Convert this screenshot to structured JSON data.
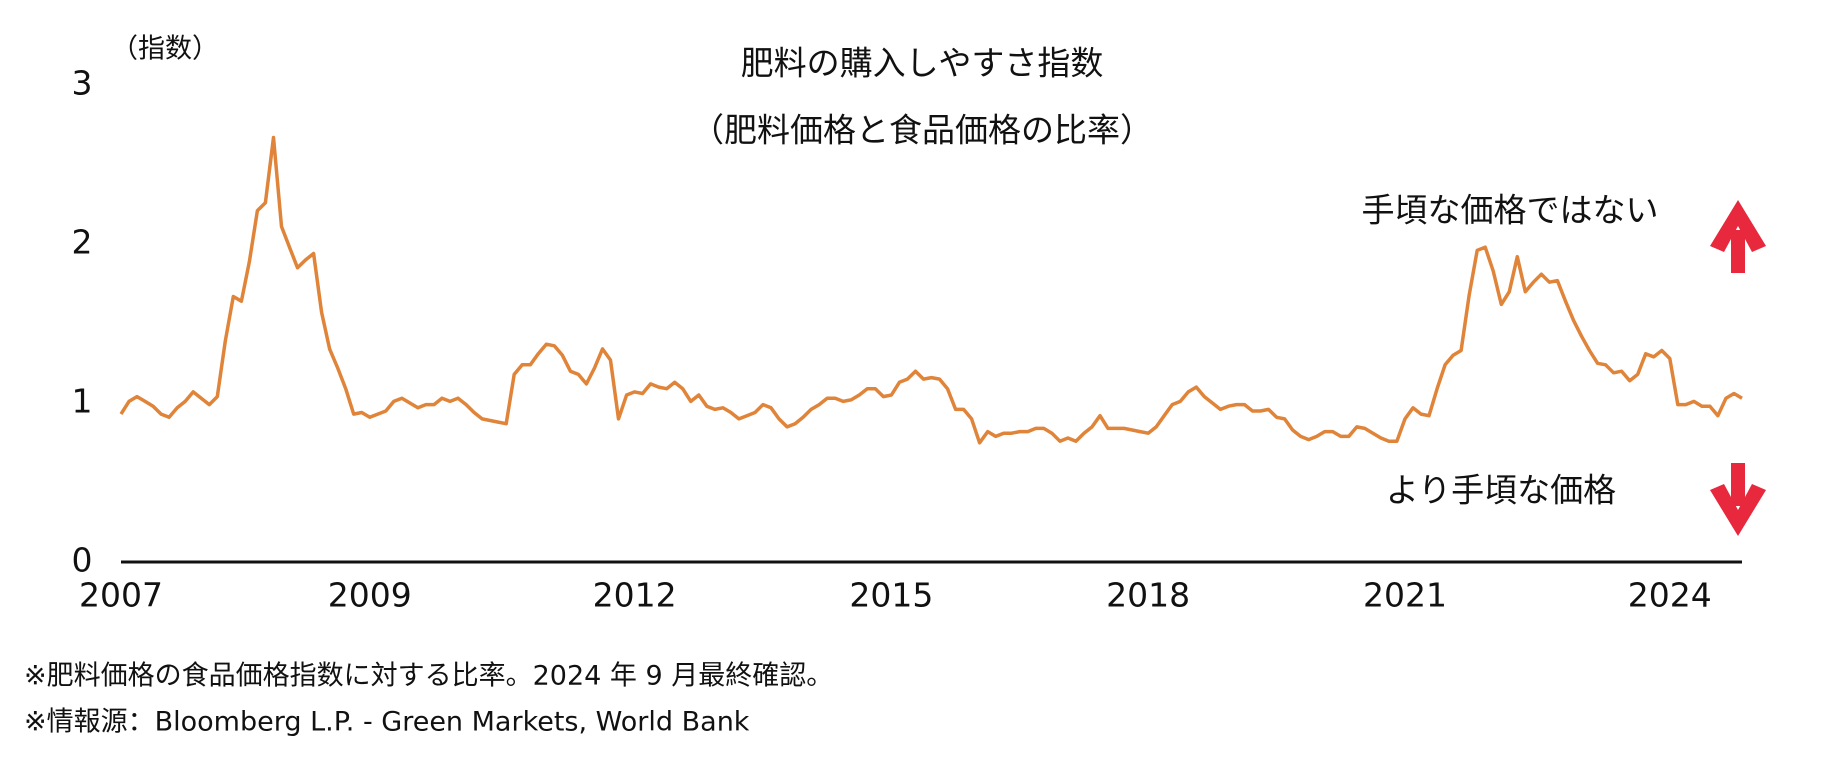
{
  "chart_data": {
    "type": "line",
    "title": "肥料の購入しやすさ指数",
    "subtitle": "（肥料価格と食品価格の比率）",
    "y_label": "（指数）",
    "annotations": [
      "手頃な価格ではない",
      "より手頃な価格"
    ],
    "categories": [
      "2007",
      null,
      null,
      null,
      null,
      null,
      null,
      null,
      null,
      null,
      null,
      null,
      null,
      null,
      null,
      null,
      null,
      null,
      null,
      null,
      null,
      null,
      null,
      null,
      null,
      null,
      null,
      null,
      null,
      null,
      null,
      "2009",
      null,
      null,
      null,
      null,
      null,
      null,
      null,
      null,
      null,
      null,
      null,
      null,
      null,
      null,
      null,
      null,
      null,
      null,
      null,
      null,
      null,
      null,
      null,
      null,
      null,
      null,
      null,
      null,
      null,
      null,
      null,
      null,
      "2012",
      null,
      null,
      null,
      null,
      null,
      null,
      null,
      null,
      null,
      null,
      null,
      null,
      null,
      null,
      null,
      null,
      null,
      null,
      null,
      null,
      null,
      null,
      null,
      null,
      null,
      null,
      null,
      null,
      null,
      null,
      null,
      "2015",
      null,
      null,
      null,
      null,
      null,
      null,
      null,
      null,
      null,
      null,
      null,
      null,
      null,
      null,
      null,
      null,
      null,
      null,
      null,
      null,
      null,
      null,
      null,
      null,
      null,
      null,
      null,
      null,
      null,
      null,
      null,
      "2018",
      null,
      null,
      null,
      null,
      null,
      null,
      null,
      null,
      null,
      null,
      null,
      null,
      null,
      null,
      null,
      null,
      null,
      null,
      null,
      null,
      null,
      null,
      null,
      null,
      null,
      null,
      null,
      null,
      null,
      null,
      null,
      "2021",
      null,
      null,
      null,
      null,
      null,
      null,
      null,
      null,
      null,
      null,
      null,
      null,
      null,
      null,
      null,
      null,
      null,
      null,
      null,
      null,
      null,
      null,
      null,
      null,
      null,
      null,
      null,
      null,
      null,
      null,
      null,
      null,
      "2024",
      null,
      null,
      null,
      null,
      null,
      null,
      null,
      null,
      null
    ],
    "series": [
      {
        "color": "#e0843a",
        "values": [
          0.93,
          1.01,
          1.04,
          1.01,
          0.98,
          0.93,
          0.91,
          0.97,
          1.01,
          1.07,
          1.03,
          0.99,
          1.04,
          1.39,
          1.67,
          1.64,
          1.89,
          2.21,
          2.26,
          2.67,
          2.11,
          1.98,
          1.85,
          1.9,
          1.94,
          1.57,
          1.34,
          1.22,
          1.09,
          0.93,
          0.94,
          0.91,
          0.93,
          0.95,
          1.01,
          1.03,
          1.0,
          0.97,
          0.99,
          0.99,
          1.03,
          1.01,
          1.03,
          0.99,
          0.94,
          0.9,
          0.89,
          0.88,
          0.87,
          1.18,
          1.24,
          1.24,
          1.31,
          1.37,
          1.36,
          1.3,
          1.2,
          1.18,
          1.12,
          1.22,
          1.34,
          1.27,
          0.9,
          1.05,
          1.07,
          1.06,
          1.12,
          1.1,
          1.09,
          1.13,
          1.09,
          1.01,
          1.05,
          0.98,
          0.96,
          0.97,
          0.94,
          0.9,
          0.92,
          0.94,
          0.99,
          0.97,
          0.9,
          0.85,
          0.87,
          0.91,
          0.96,
          0.99,
          1.03,
          1.03,
          1.01,
          1.02,
          1.05,
          1.09,
          1.09,
          1.04,
          1.05,
          1.13,
          1.15,
          1.2,
          1.15,
          1.16,
          1.15,
          1.09,
          0.96,
          0.96,
          0.9,
          0.75,
          0.82,
          0.79,
          0.81,
          0.81,
          0.82,
          0.82,
          0.84,
          0.84,
          0.81,
          0.76,
          0.78,
          0.76,
          0.81,
          0.85,
          0.92,
          0.84,
          0.84,
          0.84,
          0.83,
          0.82,
          0.81,
          0.85,
          0.92,
          0.99,
          1.01,
          1.07,
          1.1,
          1.04,
          1.0,
          0.96,
          0.98,
          0.99,
          0.99,
          0.95,
          0.95,
          0.96,
          0.91,
          0.9,
          0.83,
          0.79,
          0.77,
          0.79,
          0.82,
          0.82,
          0.79,
          0.79,
          0.85,
          0.84,
          0.81,
          0.78,
          0.76,
          0.76,
          0.9,
          0.97,
          0.93,
          0.92,
          1.09,
          1.24,
          1.3,
          1.33,
          1.68,
          1.96,
          1.98,
          1.83,
          1.62,
          1.7,
          1.92,
          1.7,
          1.76,
          1.81,
          1.76,
          1.77,
          1.64,
          1.52,
          1.42,
          1.33,
          1.25,
          1.24,
          1.19,
          1.2,
          1.14,
          1.18,
          1.31,
          1.29,
          1.33,
          1.28,
          0.99,
          0.99,
          1.01,
          0.98,
          0.98,
          0.92,
          1.03,
          1.06,
          1.03
        ]
      }
    ],
    "ylim": [
      0,
      3
    ],
    "yticks": [
      0,
      1,
      2,
      3
    ],
    "grid": false,
    "footnotes": [
      "※肥料価格の食品価格指数に対する比率。2024 年 9 月最終確認。",
      "※情報源：Bloomberg L.P. - Green Markets, World Bank"
    ]
  }
}
